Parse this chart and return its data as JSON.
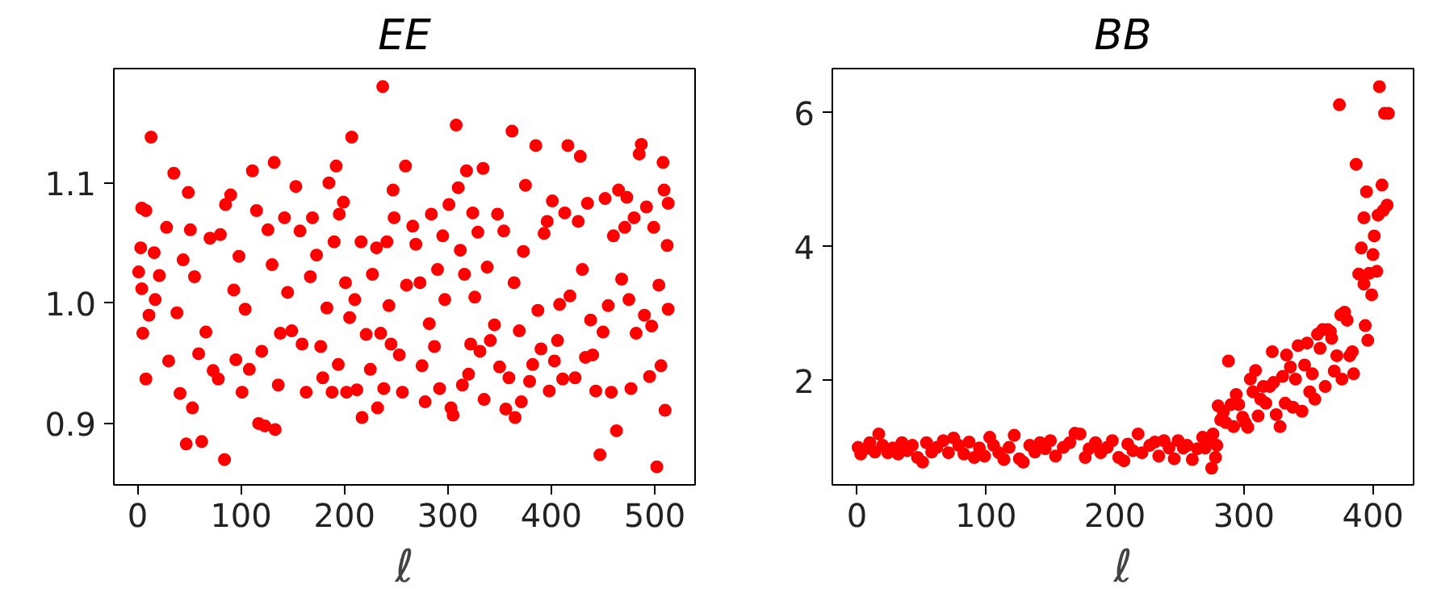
{
  "chart_data": [
    {
      "type": "scatter",
      "title": "EE",
      "xlabel": "ℓ",
      "marker": "circle",
      "grid": false,
      "xlim": [
        -23,
        539
      ],
      "ylim": [
        0.849,
        1.195
      ],
      "xticks": [
        0,
        100,
        200,
        300,
        400,
        500
      ],
      "yticks": [
        0.9,
        {
          "value": 1.0,
          "label": "1.0"
        },
        1.1
      ],
      "series": [
        {
          "color": "#ff0000",
          "x": [
            1,
            3,
            4,
            4,
            8,
            5,
            8,
            13,
            11,
            16,
            17,
            21,
            28,
            30,
            35,
            38,
            41,
            44,
            47,
            49,
            51,
            53,
            55,
            59,
            62,
            66,
            70,
            73,
            78,
            80,
            84,
            85,
            90,
            93,
            95,
            98,
            101,
            104,
            108,
            111,
            115,
            117,
            120,
            123,
            126,
            130,
            132,
            133,
            136,
            138,
            142,
            145,
            149,
            153,
            157,
            159,
            163,
            167,
            169,
            173,
            177,
            179,
            183,
            185,
            188,
            190,
            192,
            194,
            195,
            199,
            201,
            202,
            205,
            207,
            210,
            212,
            216,
            217,
            221,
            225,
            227,
            231,
            232,
            235,
            237,
            238,
            241,
            243,
            245,
            247,
            248,
            253,
            256,
            259,
            260,
            266,
            269,
            273,
            275,
            278,
            282,
            284,
            287,
            290,
            292,
            295,
            297,
            301,
            303,
            305,
            308,
            310,
            312,
            314,
            316,
            318,
            320,
            322,
            324,
            326,
            329,
            331,
            334,
            335,
            338,
            341,
            345,
            348,
            350,
            354,
            356,
            359,
            362,
            364,
            365,
            369,
            371,
            373,
            375,
            379,
            382,
            385,
            387,
            390,
            393,
            396,
            398,
            401,
            403,
            406,
            408,
            411,
            413,
            416,
            418,
            423,
            426,
            428,
            430,
            433,
            435,
            438,
            440,
            443,
            447,
            450,
            452,
            455,
            458,
            460,
            463,
            465,
            468,
            471,
            473,
            475,
            477,
            480,
            482,
            485,
            487,
            490,
            492,
            495,
            497,
            499,
            502,
            504,
            506,
            508,
            509,
            510,
            512,
            513,
            513
          ],
          "values": [
            1.026,
            1.046,
            1.012,
            1.079,
            1.077,
            0.975,
            0.937,
            1.138,
            0.99,
            1.042,
            1.003,
            1.023,
            1.063,
            0.952,
            1.108,
            0.992,
            0.925,
            1.036,
            0.883,
            1.092,
            1.061,
            0.913,
            1.022,
            0.958,
            0.885,
            0.976,
            1.054,
            0.944,
            0.937,
            1.057,
            0.87,
            1.082,
            1.09,
            1.011,
            0.953,
            1.039,
            0.926,
            0.995,
            0.945,
            1.11,
            1.077,
            0.9,
            0.96,
            0.898,
            1.061,
            1.032,
            1.117,
            0.895,
            0.932,
            0.975,
            1.071,
            1.009,
            0.977,
            1.097,
            1.06,
            0.966,
            0.926,
            1.022,
            1.071,
            1.04,
            0.964,
            0.938,
            0.996,
            1.1,
            0.926,
            1.051,
            1.114,
            0.949,
            1.074,
            1.084,
            1.017,
            0.926,
            0.988,
            1.138,
            1.003,
            0.928,
            1.051,
            0.905,
            0.974,
            0.945,
            1.024,
            1.046,
            0.913,
            0.975,
            1.18,
            0.929,
            1.051,
            0.998,
            0.966,
            1.094,
            1.071,
            0.957,
            0.926,
            1.114,
            1.015,
            1.064,
            1.049,
            1.017,
            0.948,
            0.918,
            0.983,
            1.074,
            0.964,
            1.028,
            0.929,
            1.056,
            1.003,
            1.082,
            0.913,
            0.907,
            1.148,
            1.096,
            1.044,
            0.932,
            1.024,
            1.11,
            0.941,
            0.966,
            1.075,
            1.005,
            1.059,
            0.96,
            1.112,
            0.92,
            1.03,
            0.969,
            0.982,
            1.074,
            0.947,
            1.06,
            0.912,
            0.938,
            1.143,
            1.017,
            0.905,
            0.977,
            0.918,
            1.043,
            1.098,
            0.935,
            0.949,
            1.131,
            0.994,
            0.962,
            1.058,
            1.068,
            0.927,
            1.085,
            0.952,
            0.969,
            0.999,
            0.937,
            1.075,
            1.131,
            1.006,
            0.938,
            1.068,
            1.122,
            1.028,
            0.955,
            1.083,
            0.986,
            0.957,
            0.927,
            0.874,
            0.976,
            1.087,
            0.998,
            0.926,
            1.056,
            0.894,
            1.094,
            1.02,
            1.063,
            1.088,
            1.003,
            0.929,
            1.071,
            0.975,
            1.124,
            1.132,
            0.99,
            1.08,
            0.939,
            0.981,
            1.063,
            0.864,
            1.015,
            0.948,
            1.117,
            1.094,
            0.911,
            1.048,
            0.995,
            1.083
          ]
        }
      ]
    },
    {
      "type": "scatter",
      "title": "BB",
      "xlabel": "ℓ",
      "marker": "circle",
      "grid": false,
      "xlim": [
        -19,
        431.5
      ],
      "ylim": [
        0.44,
        6.66
      ],
      "xticks": [
        0,
        100,
        200,
        300,
        400
      ],
      "yticks": [
        2,
        4,
        6
      ],
      "series": [
        {
          "color": "#ff0000",
          "x": [
            1,
            3,
            7,
            10,
            14,
            17,
            20,
            24,
            28,
            32,
            35,
            39,
            43,
            47,
            51,
            54,
            58,
            62,
            67,
            71,
            75,
            79,
            83,
            87,
            91,
            95,
            99,
            103,
            106,
            110,
            114,
            118,
            122,
            126,
            129,
            134,
            138,
            142,
            146,
            150,
            154,
            160,
            165,
            169,
            173,
            177,
            180,
            185,
            189,
            194,
            198,
            203,
            207,
            210,
            214,
            218,
            221,
            227,
            231,
            234,
            238,
            242,
            246,
            249,
            253,
            256,
            260,
            264,
            268,
            270,
            273,
            275,
            276,
            278,
            279,
            280,
            282,
            284,
            286,
            288,
            290,
            292,
            294,
            296,
            299,
            301,
            303,
            305,
            307,
            309,
            311,
            313,
            315,
            317,
            320,
            322,
            323,
            325,
            328,
            330,
            332,
            333,
            336,
            338,
            340,
            342,
            345,
            347,
            349,
            351,
            353,
            355,
            357,
            359,
            361,
            363,
            365,
            367,
            368,
            370,
            372,
            374,
            375,
            376,
            378,
            380,
            382,
            384,
            385,
            387,
            389,
            391,
            393,
            393,
            394,
            395,
            396,
            397,
            399,
            400,
            401,
            403,
            404,
            405,
            407,
            408,
            409,
            411,
            412
          ],
          "values": [
            1.0,
            0.9,
            0.98,
            1.07,
            0.93,
            1.2,
            1.03,
            0.92,
            0.99,
            0.9,
            1.07,
            0.95,
            1.03,
            0.85,
            0.78,
            1.07,
            0.93,
            1.0,
            1.1,
            0.92,
            1.14,
            1.03,
            0.9,
            1.08,
            0.85,
            0.99,
            0.87,
            1.15,
            1.03,
            0.92,
            0.82,
            1.0,
            1.18,
            0.83,
            0.78,
            1.03,
            0.93,
            1.07,
            0.98,
            1.1,
            0.87,
            1.0,
            1.07,
            1.21,
            1.2,
            0.85,
            0.98,
            1.07,
            0.92,
            1.0,
            1.1,
            0.85,
            0.8,
            1.05,
            0.95,
            1.2,
            0.92,
            1.03,
            1.08,
            0.87,
            1.1,
            0.99,
            0.83,
            1.1,
            0.99,
            1.03,
            0.82,
            0.98,
            1.15,
            0.99,
            1.08,
            0.69,
            1.2,
            0.85,
            1.03,
            1.62,
            1.41,
            1.53,
            1.37,
            2.29,
            1.64,
            1.31,
            1.79,
            1.64,
            1.45,
            1.37,
            1.3,
            2.02,
            1.83,
            2.15,
            1.47,
            1.72,
            1.91,
            1.66,
            1.91,
            2.43,
            1.97,
            1.49,
            1.31,
            2.06,
            1.66,
            2.38,
            2.2,
            1.6,
            2.02,
            2.52,
            1.54,
            2.23,
            2.56,
            1.83,
            2.1,
            1.72,
            2.69,
            2.48,
            2.76,
            1.91,
            2.76,
            2.73,
            2.63,
            2.14,
            2.37,
            6.12,
            2.98,
            2.02,
            3.02,
            2.9,
            2.37,
            2.43,
            2.1,
            5.23,
            3.59,
            3.98,
            3.44,
            4.43,
            2.82,
            4.82,
            2.6,
            3.6,
            3.28,
            3.88,
            4.16,
            3.63,
            4.47,
            6.39,
            4.92,
            4.54,
            5.99,
            4.62,
            5.99
          ]
        }
      ]
    }
  ]
}
